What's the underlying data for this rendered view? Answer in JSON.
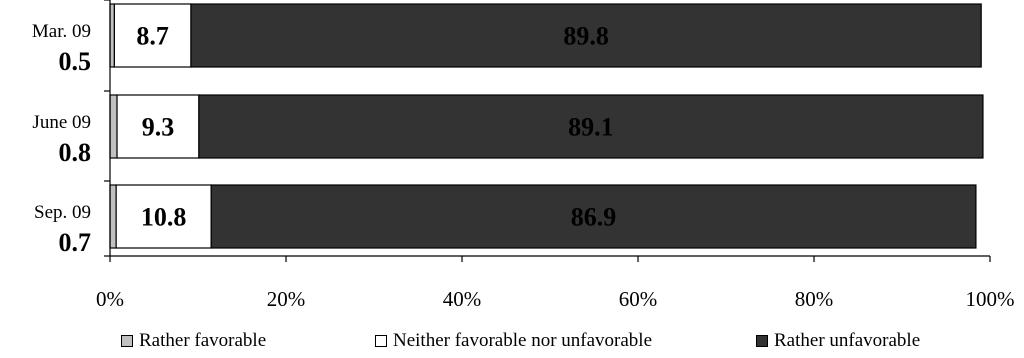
{
  "chart_data": {
    "type": "bar",
    "orientation": "horizontal",
    "stacked": true,
    "categories": [
      "Mar. 09",
      "June 09",
      "Sep. 09"
    ],
    "series": [
      {
        "name": "Rather favorable",
        "values": [
          0.5,
          0.8,
          0.7
        ],
        "color": "#c0c0c0"
      },
      {
        "name": "Neither favorable nor unfavorable",
        "values": [
          8.7,
          9.3,
          10.8
        ],
        "color": "#ffffff"
      },
      {
        "name": "Rather unfavorable",
        "values": [
          89.8,
          89.1,
          86.9
        ],
        "color": "#333333"
      }
    ],
    "category_labels": [
      "0.5",
      "0.8",
      "0.7"
    ],
    "x_ticks": [
      "0%",
      "20%",
      "40%",
      "60%",
      "80%",
      "100%"
    ],
    "xlim": [
      0,
      100
    ],
    "grid": false,
    "legend_position": "bottom"
  }
}
